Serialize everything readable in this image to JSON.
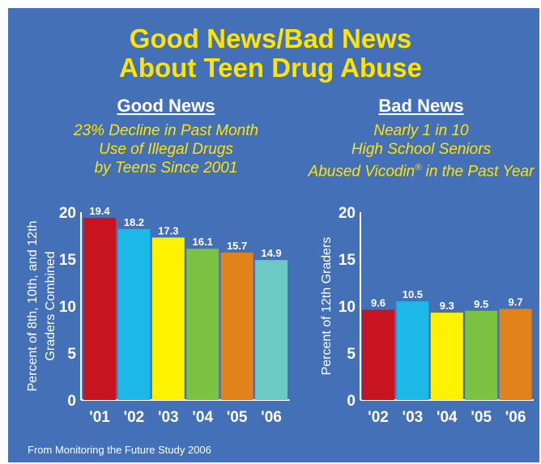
{
  "title": {
    "line1": "Good News/Bad News",
    "line2": "About Teen Drug Abuse"
  },
  "left": {
    "heading": "Good News",
    "subtitle": [
      "23% Decline in Past Month",
      "Use of Illegal Drugs",
      "by Teens Since 2001"
    ]
  },
  "right": {
    "heading": "Bad News",
    "subtitle": [
      "Nearly 1 in 10",
      "High School Seniors"
    ],
    "subtitle_3_pre": "Abused Vicodin",
    "registered_mark": "®",
    "subtitle_3_post": " in the Past Year"
  },
  "source": "From Monitoring the Future Study 2006",
  "colors": {
    "background": "#4470b8",
    "title": "#ffe400",
    "subtitle": "#ffe400",
    "text": "#ffffff"
  },
  "chart_data": [
    {
      "type": "bar",
      "categories": [
        "'01",
        "'02",
        "'03",
        "'04",
        "'05",
        "'06"
      ],
      "values": [
        19.4,
        18.2,
        17.3,
        16.1,
        15.7,
        14.9
      ],
      "colors": [
        "#c8141e",
        "#1cb8e8",
        "#fff200",
        "#7cc242",
        "#e2821a",
        "#6ccac4"
      ],
      "ylabel": "Percent of 8th, 10th, and 12th Graders Combined",
      "ylabel_lines": [
        "Percent of 8th, 10th, and 12th",
        "Graders Combined"
      ],
      "ylim": [
        0,
        20
      ],
      "yticks": [
        0,
        5,
        10,
        15,
        20
      ],
      "grid": false
    },
    {
      "type": "bar",
      "categories": [
        "'02",
        "'03",
        "'04",
        "'05",
        "'06"
      ],
      "values": [
        9.6,
        10.5,
        9.3,
        9.5,
        9.7
      ],
      "colors": [
        "#c8141e",
        "#1cb8e8",
        "#fff200",
        "#7cc242",
        "#e2821a"
      ],
      "ylabel": "Percent of 12th Graders",
      "ylabel_lines": [
        "Percent of 12th Graders"
      ],
      "ylim": [
        0,
        20
      ],
      "yticks": [
        0,
        5,
        10,
        15,
        20
      ],
      "grid": false
    }
  ]
}
